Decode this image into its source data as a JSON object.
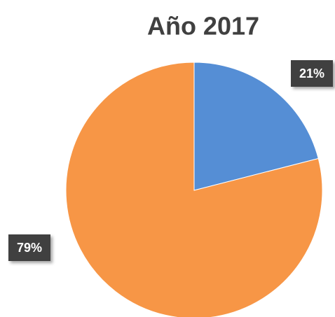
{
  "chart_data": {
    "type": "pie",
    "title": "Año 2017",
    "values": [
      21,
      79
    ],
    "value_labels": [
      "21%",
      "79%"
    ],
    "colors": [
      "#558ed5",
      "#f79646"
    ]
  }
}
